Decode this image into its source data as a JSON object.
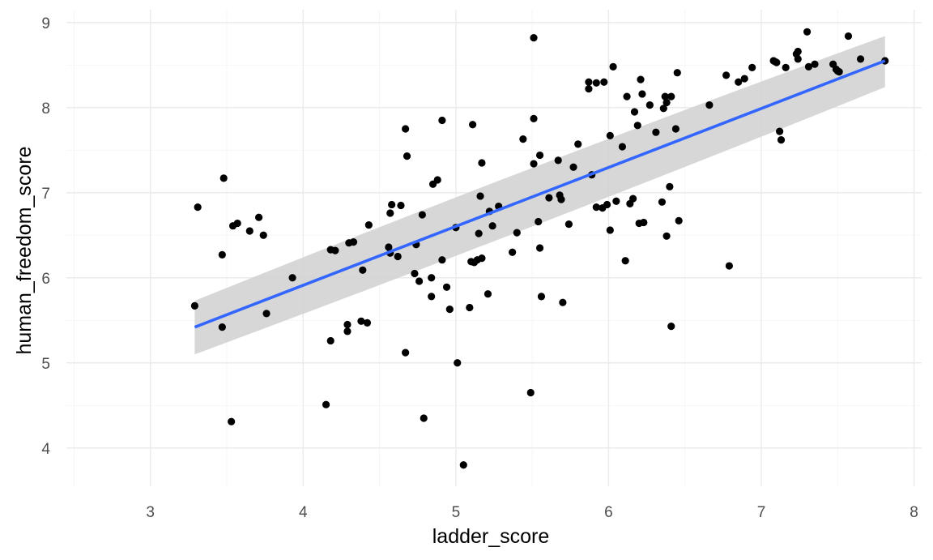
{
  "chart_data": {
    "type": "scatter",
    "title": "",
    "xlabel": "ladder_score",
    "ylabel": "human_freedom_score",
    "xlim": [
      2.45,
      8.05
    ],
    "ylim": [
      3.55,
      9.15
    ],
    "x_ticks": [
      3,
      4,
      5,
      6,
      7,
      8
    ],
    "y_ticks": [
      4,
      5,
      6,
      7,
      8,
      9
    ],
    "x_tick_labels": [
      "3",
      "4",
      "5",
      "6",
      "7",
      "8"
    ],
    "y_tick_labels": [
      "4",
      "5",
      "6",
      "7",
      "8",
      "9"
    ],
    "grid": true,
    "legend": "none",
    "colors": {
      "points": "#000000",
      "fit_line": "#3366ff",
      "confidence_band": "#d3d3d3",
      "grid": "#ebebeb"
    },
    "smooth": {
      "method": "linear",
      "x": [
        3.29,
        7.81
      ],
      "y": [
        5.42,
        8.55
      ],
      "band_lower": [
        5.1,
        8.24
      ],
      "band_upper": [
        5.73,
        8.84
      ]
    },
    "series": [
      {
        "points": [
          [
            3.29,
            5.67
          ],
          [
            3.31,
            6.83
          ],
          [
            3.47,
            5.42
          ],
          [
            3.47,
            6.27
          ],
          [
            3.48,
            7.17
          ],
          [
            3.53,
            4.31
          ],
          [
            3.54,
            6.61
          ],
          [
            3.57,
            6.64
          ],
          [
            3.65,
            6.55
          ],
          [
            3.71,
            6.71
          ],
          [
            3.74,
            6.5
          ],
          [
            3.76,
            5.58
          ],
          [
            3.93,
            6.0
          ],
          [
            4.15,
            4.51
          ],
          [
            4.18,
            5.26
          ],
          [
            4.18,
            6.33
          ],
          [
            4.21,
            6.32
          ],
          [
            4.29,
            5.37
          ],
          [
            4.29,
            5.45
          ],
          [
            4.3,
            6.41
          ],
          [
            4.33,
            6.42
          ],
          [
            4.38,
            5.49
          ],
          [
            4.39,
            6.09
          ],
          [
            4.42,
            5.47
          ],
          [
            4.43,
            6.62
          ],
          [
            4.56,
            6.36
          ],
          [
            4.57,
            6.29
          ],
          [
            4.57,
            6.76
          ],
          [
            4.58,
            6.86
          ],
          [
            4.62,
            6.25
          ],
          [
            4.64,
            6.85
          ],
          [
            4.67,
            5.12
          ],
          [
            4.67,
            7.75
          ],
          [
            4.68,
            7.43
          ],
          [
            4.73,
            6.05
          ],
          [
            4.74,
            6.39
          ],
          [
            4.76,
            5.96
          ],
          [
            4.78,
            6.74
          ],
          [
            4.79,
            4.35
          ],
          [
            4.84,
            5.78
          ],
          [
            4.84,
            6.0
          ],
          [
            4.85,
            7.1
          ],
          [
            4.88,
            7.15
          ],
          [
            4.91,
            6.21
          ],
          [
            4.91,
            7.85
          ],
          [
            4.94,
            5.89
          ],
          [
            4.96,
            5.63
          ],
          [
            5.0,
            6.59
          ],
          [
            5.01,
            5.0
          ],
          [
            5.05,
            3.8
          ],
          [
            5.09,
            5.65
          ],
          [
            5.1,
            6.19
          ],
          [
            5.11,
            7.8
          ],
          [
            5.12,
            6.18
          ],
          [
            5.14,
            6.21
          ],
          [
            5.15,
            6.52
          ],
          [
            5.16,
            6.96
          ],
          [
            5.17,
            7.35
          ],
          [
            5.17,
            6.23
          ],
          [
            5.21,
            5.81
          ],
          [
            5.22,
            6.78
          ],
          [
            5.24,
            6.61
          ],
          [
            5.28,
            6.84
          ],
          [
            5.37,
            6.3
          ],
          [
            5.4,
            6.53
          ],
          [
            5.44,
            7.63
          ],
          [
            5.49,
            4.65
          ],
          [
            5.51,
            7.87
          ],
          [
            5.51,
            7.34
          ],
          [
            5.51,
            8.82
          ],
          [
            5.54,
            6.66
          ],
          [
            5.55,
            7.44
          ],
          [
            5.55,
            6.35
          ],
          [
            5.56,
            5.78
          ],
          [
            5.61,
            6.94
          ],
          [
            5.67,
            7.38
          ],
          [
            5.68,
            6.97
          ],
          [
            5.69,
            6.92
          ],
          [
            5.7,
            5.71
          ],
          [
            5.74,
            6.63
          ],
          [
            5.77,
            7.3
          ],
          [
            5.8,
            7.57
          ],
          [
            5.87,
            8.22
          ],
          [
            5.87,
            8.3
          ],
          [
            5.89,
            7.21
          ],
          [
            5.92,
            8.29
          ],
          [
            5.92,
            6.83
          ],
          [
            5.96,
            6.82
          ],
          [
            5.97,
            8.3
          ],
          [
            5.99,
            6.86
          ],
          [
            6.01,
            6.56
          ],
          [
            6.01,
            7.67
          ],
          [
            6.03,
            8.48
          ],
          [
            6.05,
            6.9
          ],
          [
            6.09,
            7.54
          ],
          [
            6.11,
            6.2
          ],
          [
            6.12,
            8.13
          ],
          [
            6.14,
            6.87
          ],
          [
            6.16,
            6.93
          ],
          [
            6.17,
            7.95
          ],
          [
            6.19,
            7.79
          ],
          [
            6.2,
            6.64
          ],
          [
            6.21,
            8.33
          ],
          [
            6.22,
            8.16
          ],
          [
            6.23,
            6.65
          ],
          [
            6.27,
            8.03
          ],
          [
            6.31,
            7.71
          ],
          [
            6.35,
            6.89
          ],
          [
            6.36,
            7.99
          ],
          [
            6.37,
            8.13
          ],
          [
            6.38,
            8.06
          ],
          [
            6.38,
            6.49
          ],
          [
            6.4,
            7.07
          ],
          [
            6.41,
            8.13
          ],
          [
            6.41,
            5.43
          ],
          [
            6.44,
            7.75
          ],
          [
            6.45,
            8.41
          ],
          [
            6.46,
            6.67
          ],
          [
            6.66,
            8.03
          ],
          [
            6.77,
            8.38
          ],
          [
            6.79,
            6.14
          ],
          [
            6.85,
            8.3
          ],
          [
            6.89,
            8.34
          ],
          [
            6.94,
            8.47
          ],
          [
            7.08,
            8.55
          ],
          [
            7.09,
            8.54
          ],
          [
            7.1,
            8.53
          ],
          [
            7.12,
            7.72
          ],
          [
            7.13,
            7.62
          ],
          [
            7.16,
            8.47
          ],
          [
            7.23,
            8.63
          ],
          [
            7.24,
            8.66
          ],
          [
            7.24,
            8.57
          ],
          [
            7.3,
            8.89
          ],
          [
            7.31,
            8.48
          ],
          [
            7.35,
            8.51
          ],
          [
            7.47,
            8.51
          ],
          [
            7.49,
            8.45
          ],
          [
            7.5,
            8.43
          ],
          [
            7.51,
            8.42
          ],
          [
            7.57,
            8.84
          ],
          [
            7.65,
            8.57
          ],
          [
            7.81,
            8.55
          ]
        ]
      }
    ]
  }
}
